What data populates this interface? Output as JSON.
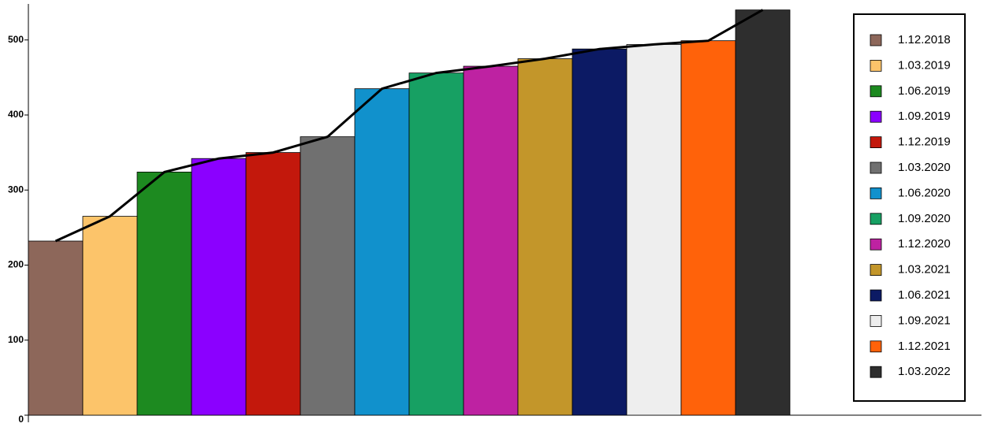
{
  "chart_data": {
    "type": "bar",
    "categories": [
      "1.12.2018",
      "1.03.2019",
      "1.06.2019",
      "1.09.2019",
      "1.12.2019",
      "1.03.2020",
      "1.06.2020",
      "1.09.2020",
      "1.12.2020",
      "1.03.2021",
      "1.06.2021",
      "1.09.2021",
      "1.12.2021",
      "1.03.2022"
    ],
    "values": [
      232,
      265,
      324,
      342,
      350,
      371,
      435,
      456,
      465,
      475,
      488,
      494,
      499,
      540
    ],
    "colors": [
      "#8d675a",
      "#fcc46a",
      "#1d8a20",
      "#8b00ff",
      "#c3180c",
      "#707070",
      "#1191cc",
      "#17a063",
      "#be22a2",
      "#c3962a",
      "#0c1a64",
      "#eeeeee",
      "#ff620a",
      "#2e2e2e"
    ],
    "line_color": "#000000",
    "ylim": [
      0,
      548
    ],
    "yticks": [
      0,
      100,
      200,
      300,
      400,
      500
    ],
    "legend": "right"
  }
}
